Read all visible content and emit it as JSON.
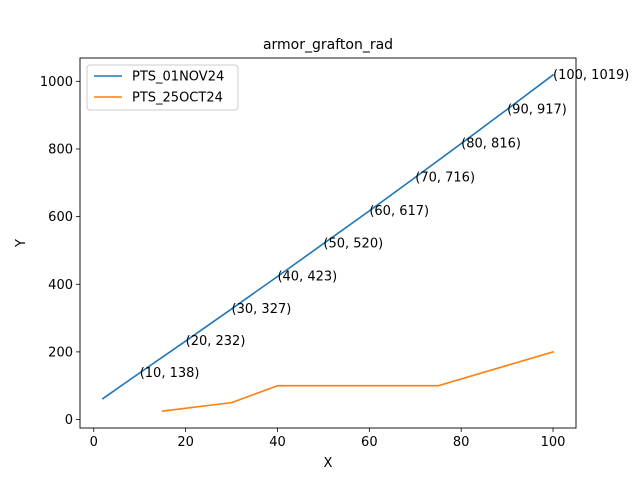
{
  "chart_data": {
    "type": "line",
    "title": "armor_grafton_rad",
    "xlabel": "X",
    "ylabel": "Y",
    "xlim": [
      -3,
      105
    ],
    "ylim": [
      -25,
      1069
    ],
    "xticks": [
      0,
      20,
      40,
      60,
      80,
      100
    ],
    "yticks": [
      0,
      200,
      400,
      600,
      800,
      1000
    ],
    "grid": false,
    "legend_position": "top-left",
    "series": [
      {
        "name": "PTS_01NOV24",
        "color": "#1f77b4",
        "x": [
          2,
          10,
          20,
          30,
          40,
          50,
          60,
          70,
          80,
          90,
          100
        ],
        "y": [
          62,
          138,
          232,
          327,
          423,
          520,
          617,
          716,
          816,
          917,
          1019
        ]
      },
      {
        "name": "PTS_25OCT24",
        "color": "#ff7f0e",
        "x": [
          15,
          30,
          40,
          75,
          100
        ],
        "y": [
          25,
          50,
          100,
          100,
          200
        ]
      }
    ],
    "annotations": [
      {
        "x": 10,
        "y": 138,
        "text": "(10, 138)"
      },
      {
        "x": 20,
        "y": 232,
        "text": "(20, 232)"
      },
      {
        "x": 30,
        "y": 327,
        "text": "(30, 327)"
      },
      {
        "x": 40,
        "y": 423,
        "text": "(40, 423)"
      },
      {
        "x": 50,
        "y": 520,
        "text": "(50, 520)"
      },
      {
        "x": 60,
        "y": 617,
        "text": "(60, 617)"
      },
      {
        "x": 70,
        "y": 716,
        "text": "(70, 716)"
      },
      {
        "x": 80,
        "y": 816,
        "text": "(80, 816)"
      },
      {
        "x": 90,
        "y": 917,
        "text": "(90, 917)"
      },
      {
        "x": 100,
        "y": 1019,
        "text": "(100, 1019)"
      }
    ]
  }
}
